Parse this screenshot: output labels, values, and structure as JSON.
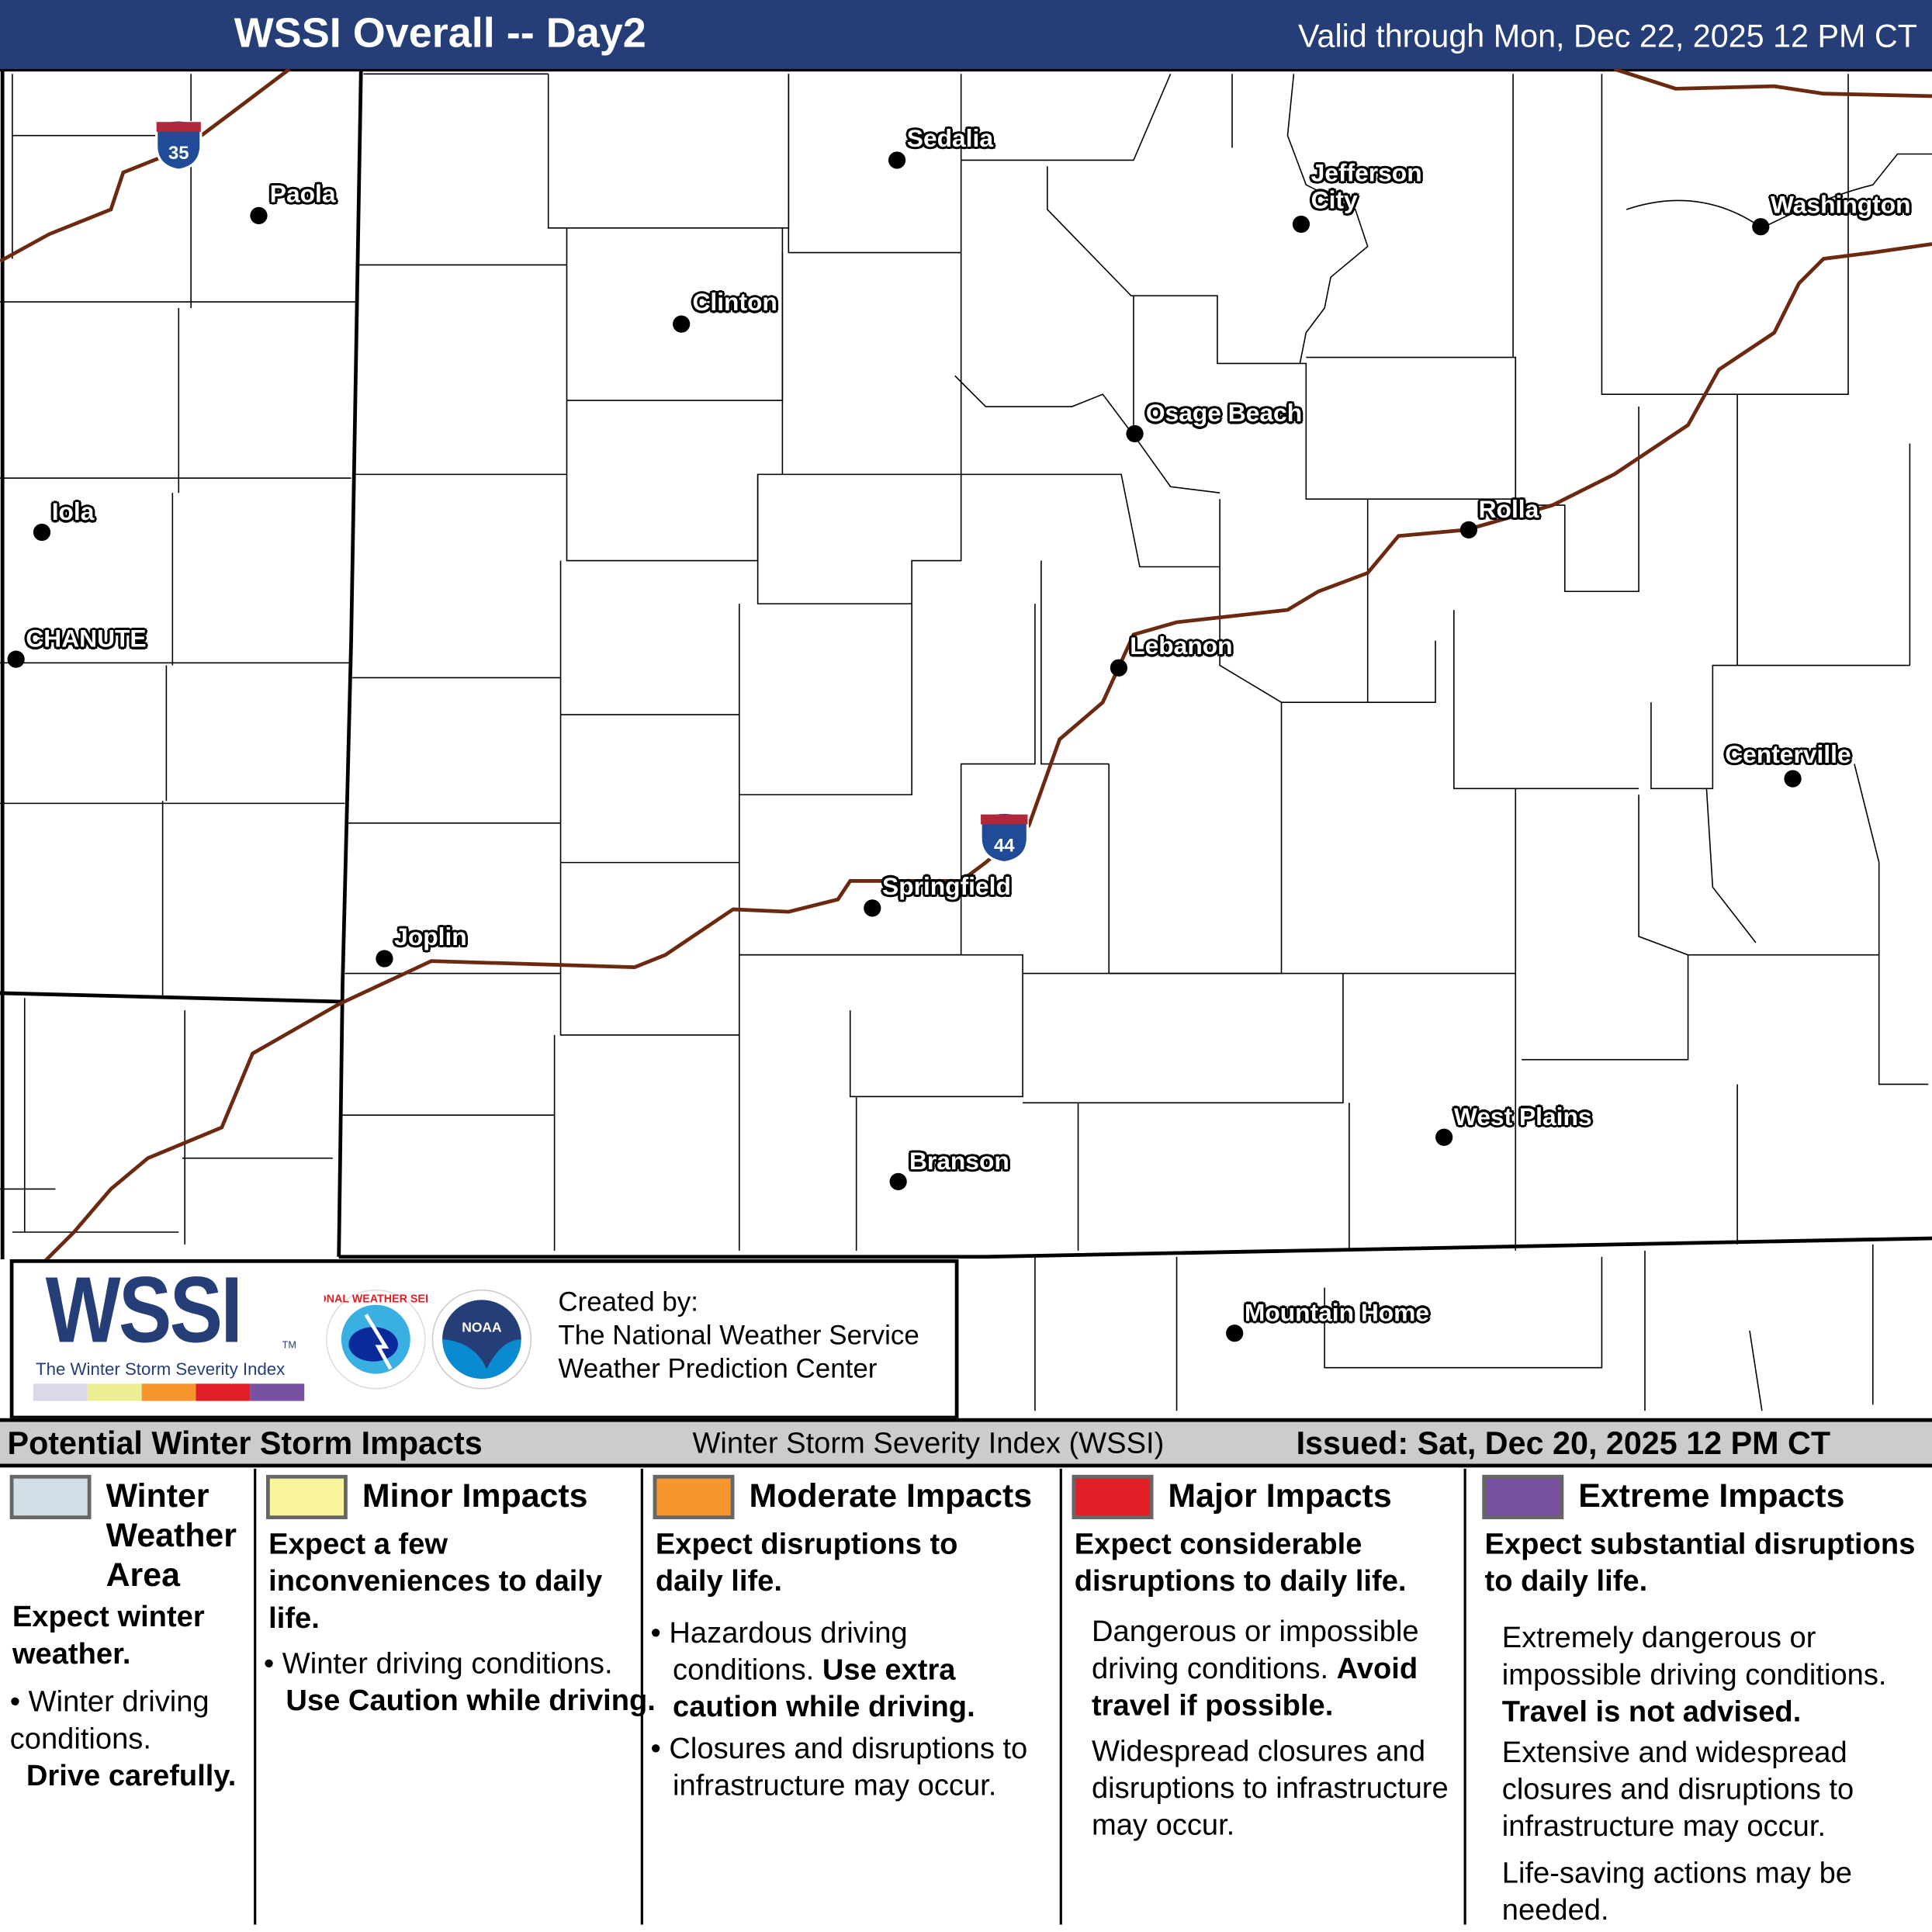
{
  "header": {
    "title": "WSSI Overall -- Day2",
    "valid": "Valid through Mon, Dec 22, 2025 12 PM CT"
  },
  "map": {
    "interstates": [
      {
        "label": "35"
      },
      {
        "label": "44"
      }
    ],
    "cities": [
      {
        "name": "Sedalia"
      },
      {
        "name": "Jefferson City"
      },
      {
        "name": "Paola"
      },
      {
        "name": "Washington"
      },
      {
        "name": "Clinton"
      },
      {
        "name": "Osage Beach"
      },
      {
        "name": "Iola"
      },
      {
        "name": "Rolla"
      },
      {
        "name": "CHANUTE"
      },
      {
        "name": "Lebanon"
      },
      {
        "name": "Centerville"
      },
      {
        "name": "Springfield"
      },
      {
        "name": "Joplin"
      },
      {
        "name": "West Plains"
      },
      {
        "name": "Branson"
      },
      {
        "name": "Mountain Home"
      }
    ],
    "colors": {
      "road": "#6b2a10",
      "interstate_blue": "#1f4b99",
      "interstate_red": "#b0283a"
    }
  },
  "logo": {
    "wssi": "WSSI",
    "tm": "TM",
    "subtitle": "The Winter Storm Severity Index",
    "created_by": "Created by:",
    "org1": "The National Weather Service",
    "org2": "Weather Prediction Center",
    "nws_text": "NATIONAL WEATHER SERVICE",
    "noaa_text": "NOAA"
  },
  "band": {
    "left": "Potential Winter Storm Impacts",
    "center": "Winter Storm Severity Index (WSSI)",
    "right": "Issued: Sat, Dec 20, 2025 12 PM CT"
  },
  "legend": [
    {
      "title": "Winter Weather Area",
      "color": "#d3dfe7",
      "lead": "Expect winter weather.",
      "b1": "Winter driving conditions.",
      "b1b": "Drive carefully."
    },
    {
      "title": "Minor Impacts",
      "color": "#f9f59f",
      "lead": "Expect a few inconveniences to daily life.",
      "b1": "Winter driving conditions.",
      "b1b": "Use Caution while driving."
    },
    {
      "title": "Moderate Impacts",
      "color": "#f7952f",
      "lead": "Expect disruptions to daily life.",
      "b1": "Hazardous driving conditions.",
      "b1b": "Use extra caution while driving.",
      "b2": "Closures and disruptions to infrastructure may occur."
    },
    {
      "title": "Major Impacts",
      "color": "#e21f26",
      "lead": "Expect considerable disruptions to daily life.",
      "b1": "Dangerous or impossible driving conditions.",
      "b1b": "Avoid travel if possible.",
      "b2": "Widespread closures and disruptions to infrastructure may occur."
    },
    {
      "title": "Extreme Impacts",
      "color": "#7851a0",
      "lead": "Expect substantial disruptions to daily life.",
      "b1": "Extremely dangerous or impossible driving conditions.",
      "b1b": "Travel is not advised.",
      "b2": "Extensive and widespread closures and disruptions to infrastructure may occur.",
      "b3": "Life-saving actions may be needed."
    }
  ]
}
